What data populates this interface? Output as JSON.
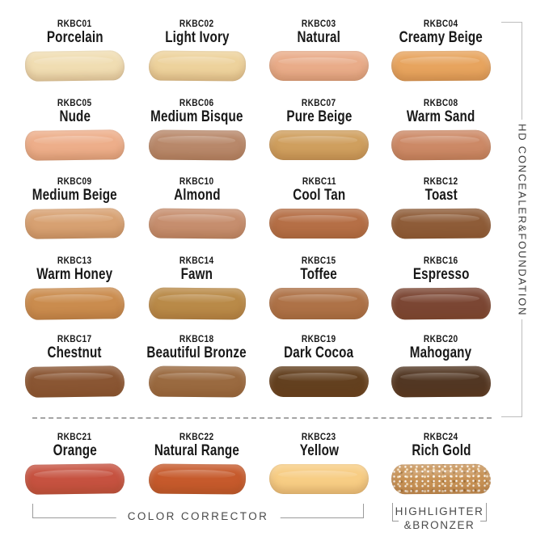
{
  "side_group": {
    "label": "HD CONCEALER&FOUNDATION"
  },
  "bottom_groups": {
    "color_corrector": "COLOR CORRECTOR",
    "highlighter_line1": "HIGHLIGHTER",
    "highlighter_line2": "&BRONZER"
  },
  "accent_colors": {
    "bracket_line": "#bdbdbd",
    "bottom_bracket_line": "#9b9b9b",
    "dashed_divider": "#a5a5a5",
    "group_label_text": "#4a4a4a",
    "shade_text": "#181818",
    "background": "#ffffff"
  },
  "swatches": [
    {
      "code": "RKBC01",
      "name": "Porcelain",
      "color": "#f0ddb2"
    },
    {
      "code": "RKBC02",
      "name": "Light Ivory",
      "color": "#edd29c"
    },
    {
      "code": "RKBC03",
      "name": "Natural",
      "color": "#e9ac89"
    },
    {
      "code": "RKBC04",
      "name": "Creamy Beige",
      "color": "#e7a45e"
    },
    {
      "code": "RKBC05",
      "name": "Nude",
      "color": "#edae8a"
    },
    {
      "code": "RKBC06",
      "name": "Medium Bisque",
      "color": "#b8886a"
    },
    {
      "code": "RKBC07",
      "name": "Pure Beige",
      "color": "#cf9f5e"
    },
    {
      "code": "RKBC08",
      "name": "Warm Sand",
      "color": "#cc8966"
    },
    {
      "code": "RKBC09",
      "name": "Medium Beige",
      "color": "#d7a172"
    },
    {
      "code": "RKBC10",
      "name": "Almond",
      "color": "#c68e6e"
    },
    {
      "code": "RKBC11",
      "name": "Cool Tan",
      "color": "#b56f46"
    },
    {
      "code": "RKBC12",
      "name": "Toast",
      "color": "#8e5c38"
    },
    {
      "code": "RKBC13",
      "name": "Warm Honey",
      "color": "#ca8c4e"
    },
    {
      "code": "RKBC14",
      "name": "Fawn",
      "color": "#b98a48"
    },
    {
      "code": "RKBC15",
      "name": "Toffee",
      "color": "#ae7247"
    },
    {
      "code": "RKBC16",
      "name": "Espresso",
      "color": "#7b4633"
    },
    {
      "code": "RKBC17",
      "name": "Chestnut",
      "color": "#8a5633"
    },
    {
      "code": "RKBC18",
      "name": "Beautiful Bronze",
      "color": "#9a6a40"
    },
    {
      "code": "RKBC19",
      "name": "Dark Cocoa",
      "color": "#63401f"
    },
    {
      "code": "RKBC20",
      "name": "Mahogany",
      "color": "#523723"
    },
    {
      "code": "RKBC21",
      "name": "Orange",
      "color": "#c65240"
    },
    {
      "code": "RKBC22",
      "name": "Natural Range",
      "color": "#c65a2c"
    },
    {
      "code": "RKBC23",
      "name": "Yellow",
      "color": "#f7cd84"
    },
    {
      "code": "RKBC24",
      "name": "Rich Gold",
      "color": "#c79256"
    }
  ]
}
